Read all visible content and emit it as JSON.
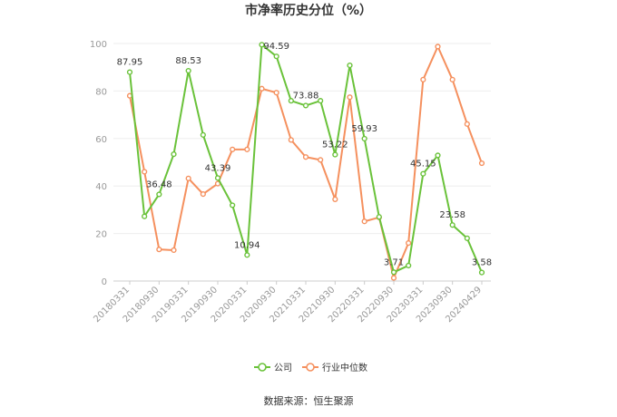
{
  "chart_data": {
    "type": "line",
    "title": "市净率历史分位（%）",
    "xlabel": "",
    "ylabel": "",
    "ylim": [
      0,
      100
    ],
    "yticks": [
      "0",
      "20",
      "40",
      "60",
      "80",
      "100"
    ],
    "x": [
      "20180331",
      "20180630",
      "20180930",
      "20181231",
      "20190331",
      "20190630",
      "20190930",
      "20191231",
      "20200331",
      "20200630",
      "20200930",
      "20201231",
      "20210331",
      "20210630",
      "20210930",
      "20211231",
      "20220331",
      "20220630",
      "20220930",
      "20221231",
      "20230331",
      "20230630",
      "20230930",
      "20231231",
      "20240429"
    ],
    "x_tick_labels": [
      "20180331",
      "20180930",
      "20190331",
      "20190930",
      "20200331",
      "20200930",
      "20210331",
      "20210930",
      "20220331",
      "20220930",
      "20230331",
      "20230930",
      "20240429"
    ],
    "series": [
      {
        "name": "公司",
        "color": "#6ac23a",
        "values": [
          87.95,
          27.2,
          36.48,
          53.4,
          88.53,
          61.5,
          43.39,
          31.9,
          10.94,
          99.5,
          94.59,
          75.9,
          73.88,
          75.9,
          53.22,
          90.8,
          59.93,
          27.0,
          3.71,
          6.5,
          45.15,
          52.9,
          23.58,
          18.0,
          3.58
        ],
        "labeled_values": {
          "0": "87.95",
          "2": "36.48",
          "4": "88.53",
          "6": "43.39",
          "8": "10.94",
          "10": "94.59",
          "12": "73.88",
          "14": "53.22",
          "16": "59.93",
          "18": "3.71",
          "20": "45.15",
          "22": "23.58",
          "24": "3.58"
        }
      },
      {
        "name": "行业中位数",
        "color": "#f5905e",
        "values": [
          78.0,
          46.0,
          13.3,
          13.0,
          43.2,
          36.6,
          41.0,
          55.4,
          55.4,
          81.0,
          79.3,
          59.4,
          52.2,
          51.0,
          34.4,
          77.4,
          25.1,
          26.8,
          1.3,
          16.0,
          84.8,
          98.7,
          84.8,
          66.1,
          49.6
        ]
      }
    ],
    "legend_position": "bottom",
    "grid": true
  },
  "footer": {
    "source": "数据来源：恒生聚源"
  }
}
